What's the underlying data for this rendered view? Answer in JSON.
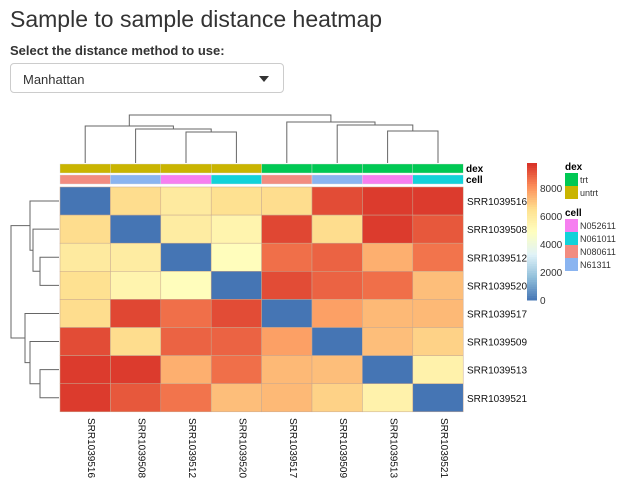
{
  "title": "Sample to sample distance heatmap",
  "select_label": "Select the distance method to use:",
  "select_value": "Manhattan",
  "chart_data": {
    "type": "heatmap",
    "samples": [
      "SRR1039516",
      "SRR1039508",
      "SRR1039512",
      "SRR1039520",
      "SRR1039517",
      "SRR1039509",
      "SRR1039513",
      "SRR1039521"
    ],
    "values": [
      [
        0,
        6600,
        6000,
        6500,
        6600,
        9300,
        9600,
        9600
      ],
      [
        6600,
        0,
        5900,
        5500,
        9400,
        6600,
        9600,
        9100
      ],
      [
        6000,
        5900,
        0,
        5000,
        8700,
        8900,
        7500,
        8600
      ],
      [
        6500,
        5500,
        5000,
        0,
        9300,
        8900,
        8700,
        7200
      ],
      [
        6600,
        9400,
        8700,
        9300,
        0,
        7800,
        7300,
        7300
      ],
      [
        9300,
        6600,
        8900,
        8900,
        7800,
        0,
        7200,
        6800
      ],
      [
        9600,
        9600,
        7500,
        8700,
        7300,
        7200,
        0,
        5600
      ],
      [
        9600,
        9100,
        8600,
        7200,
        7300,
        6800,
        5600,
        0
      ]
    ],
    "color_range": [
      0,
      9800
    ],
    "colorbar_ticks": [
      0,
      2000,
      4000,
      6000,
      8000
    ],
    "colors": [
      "#4575B4",
      "#91BFDB",
      "#E0F3F8",
      "#FFFFBF",
      "#FEE090",
      "#FC8D59",
      "#D73027"
    ],
    "annotations": {
      "dex": {
        "label": "dex",
        "values": [
          "untrt",
          "untrt",
          "untrt",
          "untrt",
          "trt",
          "trt",
          "trt",
          "trt"
        ],
        "legend": [
          {
            "name": "trt",
            "color": "#00C853"
          },
          {
            "name": "untrt",
            "color": "#C9B400"
          }
        ]
      },
      "cell": {
        "label": "cell",
        "values": [
          "N080611",
          "N61311",
          "N052611",
          "N061011",
          "N080611",
          "N61311",
          "N052611",
          "N061011"
        ],
        "legend": [
          {
            "name": "N052611",
            "color": "#F67FF0"
          },
          {
            "name": "N061011",
            "color": "#12D2D9"
          },
          {
            "name": "N080611",
            "color": "#F28C80"
          },
          {
            "name": "N61311",
            "color": "#8AB4F0"
          }
        ]
      }
    }
  }
}
